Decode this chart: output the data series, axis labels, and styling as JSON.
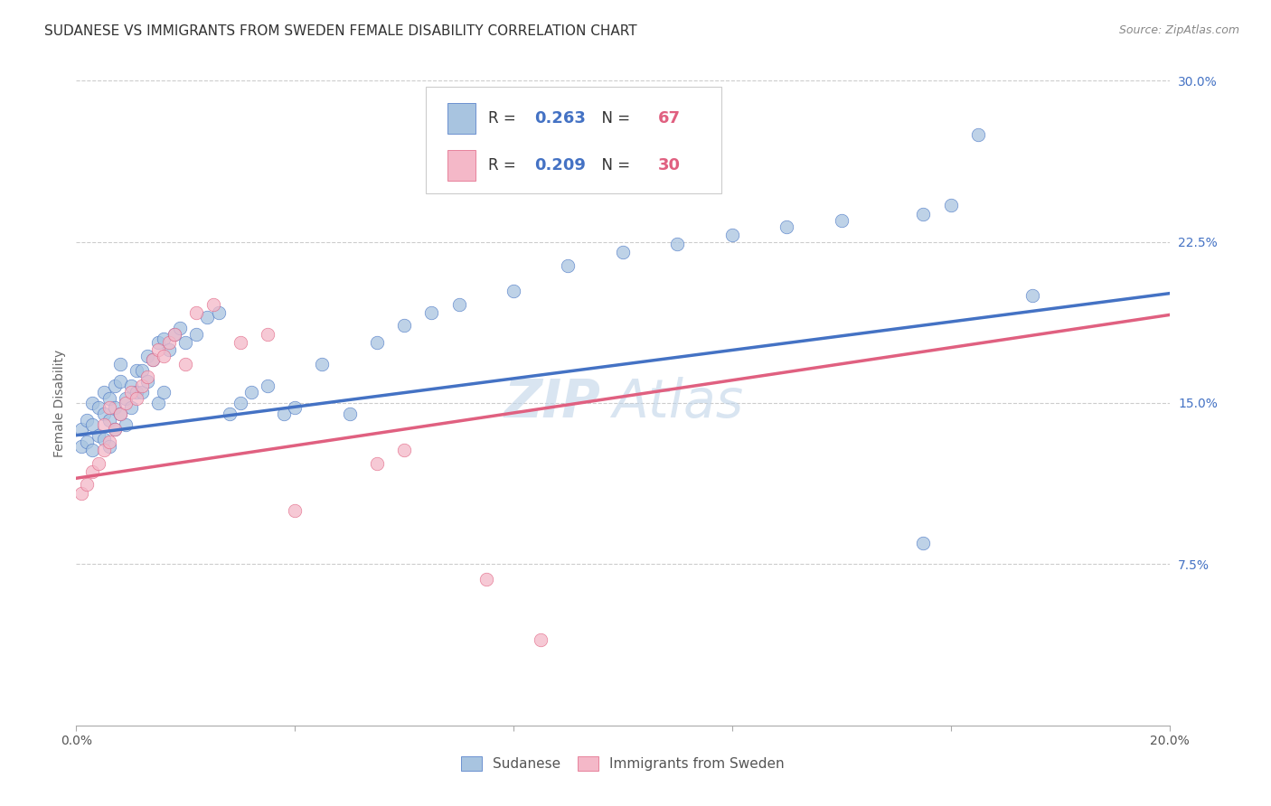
{
  "title": "SUDANESE VS IMMIGRANTS FROM SWEDEN FEMALE DISABILITY CORRELATION CHART",
  "source": "Source: ZipAtlas.com",
  "ylabel": "Female Disability",
  "x_min": 0.0,
  "x_max": 0.2,
  "y_min": 0.0,
  "y_max": 0.3,
  "y_ticks_right": [
    0.075,
    0.15,
    0.225,
    0.3
  ],
  "y_tick_labels_right": [
    "7.5%",
    "15.0%",
    "22.5%",
    "30.0%"
  ],
  "series1_name": "Sudanese",
  "series1_color": "#a8c4e0",
  "series1_edge_color": "#4472c4",
  "series1_line_color": "#4472c4",
  "series1_R": 0.263,
  "series1_N": 67,
  "series2_name": "Immigrants from Sweden",
  "series2_color": "#f4b8c8",
  "series2_edge_color": "#e06080",
  "series2_line_color": "#e06080",
  "series2_R": 0.209,
  "series2_N": 30,
  "watermark": "ZIPAtlas",
  "legend_R_color": "#4472c4",
  "legend_N_color": "#e06080",
  "grid_color": "#cccccc",
  "background_color": "#ffffff",
  "title_fontsize": 11,
  "axis_label_fontsize": 10,
  "tick_fontsize": 10,
  "watermark_color": "#c0d4e8",
  "sudanese_x": [
    0.001,
    0.001,
    0.002,
    0.002,
    0.003,
    0.003,
    0.003,
    0.004,
    0.004,
    0.005,
    0.005,
    0.005,
    0.006,
    0.006,
    0.006,
    0.007,
    0.007,
    0.007,
    0.008,
    0.008,
    0.008,
    0.009,
    0.009,
    0.01,
    0.01,
    0.011,
    0.011,
    0.012,
    0.012,
    0.013,
    0.013,
    0.014,
    0.015,
    0.015,
    0.016,
    0.016,
    0.017,
    0.018,
    0.019,
    0.02,
    0.022,
    0.024,
    0.026,
    0.028,
    0.03,
    0.032,
    0.035,
    0.038,
    0.04,
    0.045,
    0.05,
    0.055,
    0.06,
    0.065,
    0.07,
    0.08,
    0.09,
    0.1,
    0.11,
    0.12,
    0.13,
    0.14,
    0.155,
    0.16,
    0.165,
    0.175,
    0.155
  ],
  "sudanese_y": [
    0.13,
    0.138,
    0.132,
    0.142,
    0.128,
    0.14,
    0.15,
    0.135,
    0.148,
    0.133,
    0.145,
    0.155,
    0.13,
    0.142,
    0.152,
    0.138,
    0.148,
    0.158,
    0.145,
    0.16,
    0.168,
    0.14,
    0.152,
    0.148,
    0.158,
    0.155,
    0.165,
    0.155,
    0.165,
    0.16,
    0.172,
    0.17,
    0.15,
    0.178,
    0.155,
    0.18,
    0.175,
    0.182,
    0.185,
    0.178,
    0.182,
    0.19,
    0.192,
    0.145,
    0.15,
    0.155,
    0.158,
    0.145,
    0.148,
    0.168,
    0.145,
    0.178,
    0.186,
    0.192,
    0.196,
    0.202,
    0.214,
    0.22,
    0.224,
    0.228,
    0.232,
    0.235,
    0.238,
    0.242,
    0.275,
    0.2,
    0.085
  ],
  "sweden_x": [
    0.001,
    0.002,
    0.003,
    0.004,
    0.005,
    0.005,
    0.006,
    0.006,
    0.007,
    0.008,
    0.009,
    0.01,
    0.011,
    0.012,
    0.013,
    0.014,
    0.015,
    0.016,
    0.017,
    0.018,
    0.02,
    0.022,
    0.025,
    0.03,
    0.035,
    0.04,
    0.055,
    0.06,
    0.075,
    0.085
  ],
  "sweden_y": [
    0.108,
    0.112,
    0.118,
    0.122,
    0.128,
    0.14,
    0.132,
    0.148,
    0.138,
    0.145,
    0.15,
    0.155,
    0.152,
    0.158,
    0.162,
    0.17,
    0.175,
    0.172,
    0.178,
    0.182,
    0.168,
    0.192,
    0.196,
    0.178,
    0.182,
    0.1,
    0.122,
    0.128,
    0.068,
    0.04
  ]
}
